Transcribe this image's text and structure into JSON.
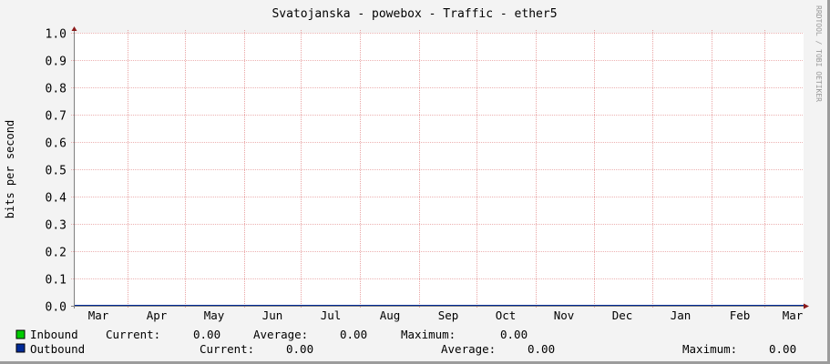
{
  "chart_data": {
    "type": "line",
    "title": "Svatojanska - powebox - Traffic - ether5",
    "xlabel": "",
    "ylabel": "bits per second",
    "ylim": [
      0,
      1.0
    ],
    "yticks": [
      "0.0",
      "0.1",
      "0.2",
      "0.3",
      "0.4",
      "0.5",
      "0.6",
      "0.7",
      "0.8",
      "0.9",
      "1.0"
    ],
    "categories": [
      "Mar",
      "Apr",
      "May",
      "Jun",
      "Jul",
      "Aug",
      "Sep",
      "Oct",
      "Nov",
      "Dec",
      "Jan",
      "Feb",
      "Mar"
    ],
    "grid": true,
    "series": [
      {
        "name": "Inbound",
        "color": "#00cc00",
        "values": [
          0,
          0,
          0,
          0,
          0,
          0,
          0,
          0,
          0,
          0,
          0,
          0,
          0
        ]
      },
      {
        "name": "Outbound",
        "color": "#002a97",
        "values": [
          0,
          0,
          0,
          0,
          0,
          0,
          0,
          0,
          0,
          0,
          0,
          0,
          0
        ]
      }
    ],
    "watermark": "RRDTOOL / TOBI OETIKER"
  },
  "legend": {
    "inbound": {
      "label": "Inbound",
      "current_label": "Current:",
      "current": "0.00",
      "average_label": "Average:",
      "average": "0.00",
      "maximum_label": "Maximum:",
      "maximum": "0.00"
    },
    "outbound": {
      "label": "Outbound",
      "current_label": "Current:",
      "current": "0.00",
      "average_label": "Average:",
      "average": "0.00",
      "maximum_label": "Maximum:",
      "maximum": "0.00"
    }
  },
  "colors": {
    "grid_major": "#e08080",
    "grid_minor": "#d0b0b0",
    "axis": "#808080",
    "arrow": "#8b1a1a",
    "background": "#f3f3f3",
    "plot": "#ffffff"
  }
}
